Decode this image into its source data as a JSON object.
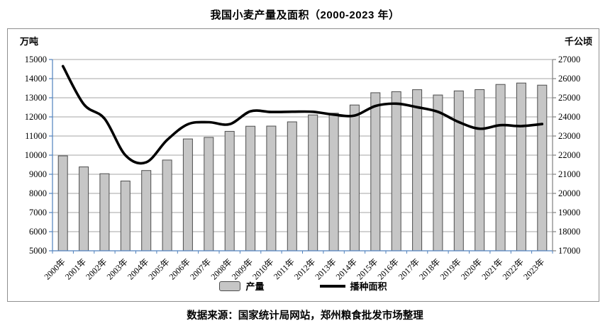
{
  "title": "我国小麦产量及面积（2000-2023 年）",
  "footer": "数据来源：国家统计局网站，郑州粮食批发市场整理",
  "chart_data": {
    "type": "bar",
    "subtype": "bar-line-combo",
    "categories": [
      "2000年",
      "2001年",
      "2002年",
      "2003年",
      "2004年",
      "2005年",
      "2006年",
      "2007年",
      "2008年",
      "2009年",
      "2010年",
      "2011年",
      "2012年",
      "2013年",
      "2014年",
      "2015年",
      "2016年",
      "2017年",
      "2018年",
      "2019年",
      "2020年",
      "2021年",
      "2022年",
      "2023年"
    ],
    "series": [
      {
        "name": "产量",
        "type": "bar",
        "axis": "left",
        "unit": "万吨",
        "values": [
          9964,
          9387,
          9029,
          8649,
          9195,
          9745,
          10847,
          10930,
          11246,
          11512,
          11518,
          11740,
          12102,
          12193,
          12621,
          13264,
          13319,
          13424,
          13144,
          13360,
          13425,
          13695,
          13772,
          13659
        ]
      },
      {
        "name": "播种面积",
        "type": "line",
        "axis": "right",
        "unit": "千公顷",
        "values": [
          26653,
          24664,
          23908,
          21997,
          21626,
          22793,
          23613,
          23721,
          23617,
          24291,
          24257,
          24270,
          24268,
          24117,
          24069,
          24571,
          24694,
          24508,
          24266,
          23728,
          23380,
          23568,
          23518,
          23627
        ]
      }
    ],
    "left_axis": {
      "label": "万吨",
      "min": 5000,
      "max": 15000,
      "step": 1000
    },
    "right_axis": {
      "label": "千公顷",
      "min": 17000,
      "max": 27000,
      "step": 1000
    },
    "grid": true,
    "legend_position": "bottom",
    "colors": {
      "bar_fill": "#c6c6c6",
      "bar_border": "#4d4d4d",
      "line": "#000000",
      "grid": "#a6a6a6",
      "left_axis": "#4f81bd",
      "right_axis": "#808080",
      "frame": "#8f8f8f",
      "text": "#000000"
    }
  }
}
